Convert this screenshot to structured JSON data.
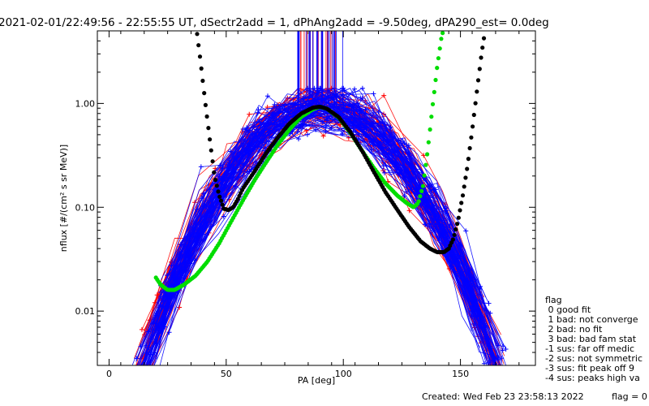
{
  "header": {
    "title": "2021-02-01/22:49:56 - 22:55:55 UT, dSectr2add = 1, dPhAng2add = -9.50deg, dPA290_est=   0.0deg"
  },
  "footer": {
    "created": "Created: Wed Feb 23 23:58:13 2022",
    "flag": "flag = 0"
  },
  "legend": {
    "title": "flag",
    "items": [
      " 0 good fit",
      " 1 bad: not converge",
      " 2 bad: no fit",
      " 3 bad: bad fam stat",
      "-1 sus: far off medic",
      "-2 sus: not symmetric",
      "-3 sus: fit peak off 9",
      "-4 sus: peaks high va"
    ]
  },
  "chart_data": {
    "type": "line",
    "title": "2021-02-01/22:49:56 - 22:55:55 UT, dSectr2add = 1, dPhAng2add = -9.50deg, dPA290_est=   0.0deg",
    "xlabel": "PA [deg]",
    "ylabel": "nflux [#/(cm² s sr MeV)]",
    "xlim": [
      -5,
      182
    ],
    "ylim": [
      0.003,
      5.0
    ],
    "yscale": "log",
    "x_ticks": [
      0,
      50,
      100,
      150
    ],
    "x_tick_labels": [
      "0",
      "50",
      "100",
      "150"
    ],
    "y_ticks": [
      0.01,
      0.1,
      1.0
    ],
    "y_tick_labels": [
      "0.01",
      "0.10",
      "1.00"
    ],
    "colors": {
      "red_series": "#ff0000",
      "blue_series": "#0000ff",
      "green_fit": "#00dd00",
      "black_fit": "#000000"
    },
    "fit_curves": [
      {
        "color": "#00dd00",
        "x": [
          20,
          22,
          25,
          28,
          32,
          37,
          42,
          47,
          52,
          57,
          62,
          67,
          72,
          77,
          82,
          87,
          90,
          93,
          98,
          103,
          108,
          113,
          118,
          123,
          127,
          130,
          132,
          134,
          136,
          138,
          140,
          142,
          144
        ],
        "y": [
          0.021,
          0.018,
          0.016,
          0.016,
          0.018,
          0.022,
          0.03,
          0.045,
          0.072,
          0.115,
          0.18,
          0.27,
          0.4,
          0.56,
          0.74,
          0.88,
          0.93,
          0.89,
          0.73,
          0.52,
          0.35,
          0.24,
          0.17,
          0.13,
          0.11,
          0.1,
          0.11,
          0.16,
          0.35,
          0.9,
          2.2,
          4.5,
          6.0
        ]
      },
      {
        "color": "#000000",
        "x": [
          37,
          39,
          41,
          43,
          45,
          47,
          49,
          51,
          53,
          55,
          57,
          62,
          67,
          72,
          77,
          82,
          87,
          90,
          93,
          98,
          103,
          108,
          113,
          118,
          123,
          128,
          133,
          137,
          140,
          143,
          145,
          147,
          149,
          151,
          153,
          155,
          157,
          159,
          161
        ],
        "y": [
          6.0,
          2.6,
          1.05,
          0.45,
          0.2,
          0.13,
          0.097,
          0.094,
          0.1,
          0.12,
          0.15,
          0.22,
          0.33,
          0.47,
          0.64,
          0.8,
          0.91,
          0.93,
          0.89,
          0.74,
          0.53,
          0.35,
          0.22,
          0.14,
          0.095,
          0.065,
          0.047,
          0.04,
          0.037,
          0.037,
          0.04,
          0.05,
          0.075,
          0.13,
          0.25,
          0.55,
          1.3,
          3.0,
          6.0
        ]
      }
    ]
  }
}
